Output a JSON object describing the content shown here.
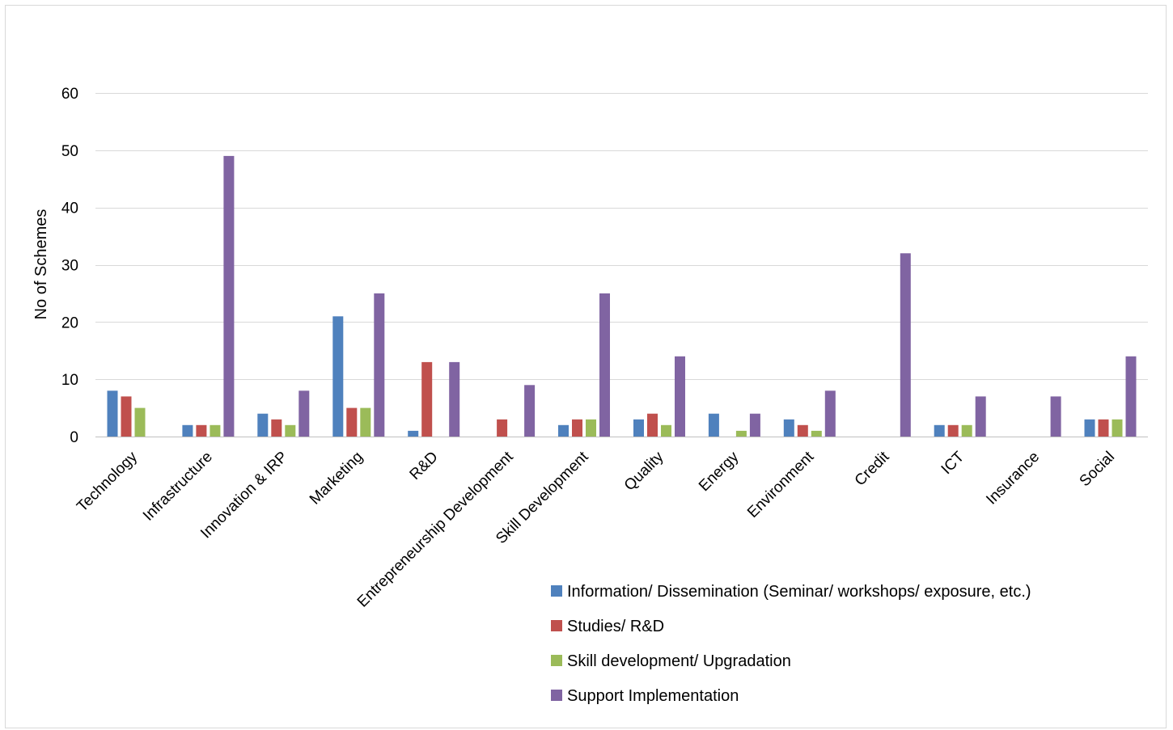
{
  "chart_data": {
    "type": "bar",
    "title": "",
    "xlabel": "",
    "ylabel": "No of Schemes",
    "ylim": [
      0,
      60
    ],
    "yticks": [
      0,
      10,
      20,
      30,
      40,
      50,
      60
    ],
    "grid": true,
    "legend_position": "bottom-right",
    "categories": [
      "Technology",
      "Infrastructure",
      "Innovation & IRP",
      "Marketing",
      "R&D",
      "Entrepreneurship Development",
      "Skill Development",
      "Quality",
      "Energy",
      "Environment",
      "Credit",
      "ICT",
      "Insurance",
      "Social"
    ],
    "series": [
      {
        "name": "Information/ Dissemination (Seminar/ workshops/ exposure, etc.)",
        "color": "#4f81bd",
        "values": [
          8,
          2,
          4,
          21,
          1,
          0,
          2,
          3,
          4,
          3,
          0,
          2,
          0,
          3
        ]
      },
      {
        "name": "Studies/ R&D",
        "color": "#c0504d",
        "values": [
          7,
          2,
          3,
          5,
          13,
          3,
          3,
          4,
          0,
          2,
          0,
          2,
          0,
          3
        ]
      },
      {
        "name": "Skill development/ Upgradation",
        "color": "#9bbb59",
        "values": [
          5,
          2,
          2,
          5,
          0,
          0,
          3,
          2,
          1,
          1,
          0,
          2,
          0,
          3
        ]
      },
      {
        "name": "Support Implementation",
        "color": "#8064a2",
        "values": [
          0,
          49,
          8,
          25,
          13,
          9,
          25,
          14,
          4,
          8,
          32,
          7,
          7,
          14
        ]
      }
    ]
  }
}
